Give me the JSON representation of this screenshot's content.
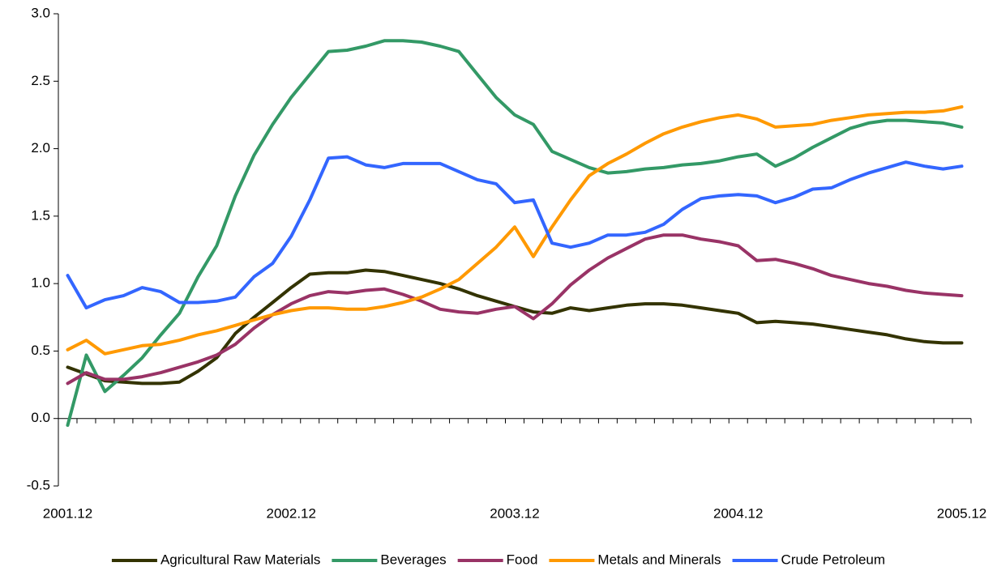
{
  "chart_data": {
    "type": "line",
    "categories": [
      "2001.12",
      null,
      null,
      null,
      null,
      null,
      null,
      null,
      null,
      null,
      null,
      null,
      "2002.12",
      null,
      null,
      null,
      null,
      null,
      null,
      null,
      null,
      null,
      null,
      null,
      "2003.12",
      null,
      null,
      null,
      null,
      null,
      null,
      null,
      null,
      null,
      null,
      null,
      "2004.12",
      null,
      null,
      null,
      null,
      null,
      null,
      null,
      null,
      null,
      null,
      null,
      "2005.12"
    ],
    "ylim": [
      -0.5,
      3.0
    ],
    "yticks": [
      -0.5,
      {
        "value": 0,
        "label": "0.0"
      },
      0.5,
      {
        "value": 1,
        "label": "1.0"
      },
      1.5,
      {
        "value": 2,
        "label": "2.0"
      },
      2.5,
      {
        "value": 3,
        "label": "3.0"
      }
    ],
    "legend": "bottom",
    "series": [
      {
        "name": "Agricultural Raw Materials",
        "color": "#333300",
        "values": [
          0.38,
          0.33,
          0.28,
          0.27,
          0.26,
          0.26,
          0.27,
          0.35,
          0.45,
          0.63,
          0.75,
          0.86,
          0.97,
          1.07,
          1.08,
          1.08,
          1.1,
          1.09,
          1.06,
          1.03,
          1.0,
          0.96,
          0.91,
          0.87,
          0.83,
          0.79,
          0.78,
          0.82,
          0.8,
          0.82,
          0.84,
          0.85,
          0.85,
          0.84,
          0.82,
          0.8,
          0.78,
          0.71,
          0.72,
          0.71,
          0.7,
          0.68,
          0.66,
          0.64,
          0.62,
          0.59,
          0.57,
          0.56,
          0.56
        ]
      },
      {
        "name": "Beverages",
        "color": "#339966",
        "values": [
          -0.05,
          0.47,
          0.2,
          0.32,
          0.45,
          0.62,
          0.78,
          1.05,
          1.28,
          1.65,
          1.95,
          2.18,
          2.38,
          2.55,
          2.72,
          2.73,
          2.76,
          2.8,
          2.8,
          2.79,
          2.76,
          2.72,
          2.55,
          2.38,
          2.25,
          2.18,
          1.98,
          1.92,
          1.86,
          1.82,
          1.83,
          1.85,
          1.86,
          1.88,
          1.89,
          1.91,
          1.94,
          1.96,
          1.87,
          1.93,
          2.01,
          2.08,
          2.15,
          2.19,
          2.21,
          2.21,
          2.2,
          2.19,
          2.16
        ]
      },
      {
        "name": "Food",
        "color": "#993366",
        "values": [
          0.26,
          0.34,
          0.29,
          0.29,
          0.31,
          0.34,
          0.38,
          0.42,
          0.47,
          0.55,
          0.67,
          0.77,
          0.85,
          0.91,
          0.94,
          0.93,
          0.95,
          0.96,
          0.92,
          0.87,
          0.81,
          0.79,
          0.78,
          0.81,
          0.83,
          0.74,
          0.85,
          0.99,
          1.1,
          1.19,
          1.26,
          1.33,
          1.36,
          1.36,
          1.33,
          1.31,
          1.28,
          1.17,
          1.18,
          1.15,
          1.11,
          1.06,
          1.03,
          1.0,
          0.98,
          0.95,
          0.93,
          0.92,
          0.91
        ]
      },
      {
        "name": "Metals and Minerals",
        "color": "#ff9900",
        "values": [
          0.51,
          0.58,
          0.48,
          0.51,
          0.54,
          0.55,
          0.58,
          0.62,
          0.65,
          0.69,
          0.73,
          0.77,
          0.8,
          0.82,
          0.82,
          0.81,
          0.81,
          0.83,
          0.86,
          0.9,
          0.96,
          1.03,
          1.15,
          1.27,
          1.42,
          1.2,
          1.42,
          1.62,
          1.8,
          1.89,
          1.96,
          2.04,
          2.11,
          2.16,
          2.2,
          2.23,
          2.25,
          2.22,
          2.16,
          2.17,
          2.18,
          2.21,
          2.23,
          2.25,
          2.26,
          2.27,
          2.27,
          2.28,
          2.31
        ]
      },
      {
        "name": "Crude Petroleum",
        "color": "#3366ff",
        "values": [
          1.06,
          0.82,
          0.88,
          0.91,
          0.97,
          0.94,
          0.86,
          0.86,
          0.87,
          0.9,
          1.05,
          1.15,
          1.35,
          1.62,
          1.93,
          1.94,
          1.88,
          1.86,
          1.89,
          1.89,
          1.89,
          1.83,
          1.77,
          1.74,
          1.6,
          1.62,
          1.3,
          1.27,
          1.3,
          1.36,
          1.36,
          1.38,
          1.44,
          1.55,
          1.63,
          1.65,
          1.66,
          1.65,
          1.6,
          1.64,
          1.7,
          1.71,
          1.77,
          1.82,
          1.86,
          1.9,
          1.87,
          1.85,
          1.87
        ]
      }
    ]
  }
}
